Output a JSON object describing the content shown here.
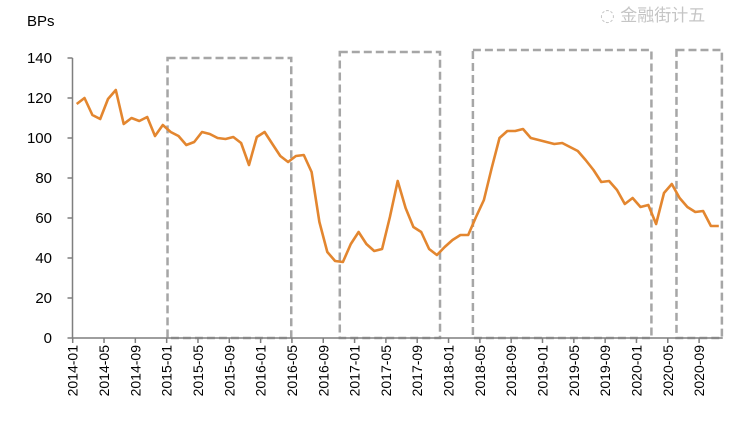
{
  "chart_data": {
    "type": "line",
    "ylabel": "BPs",
    "ylim": [
      0,
      140
    ],
    "yticks": [
      0,
      20,
      40,
      60,
      80,
      100,
      120,
      140
    ],
    "grid": false,
    "x_start": "2014-01",
    "xtick_labels": [
      "2014-01",
      "2014-05",
      "2014-09",
      "2015-01",
      "2015-05",
      "2015-09",
      "2016-01",
      "2016-05",
      "2016-09",
      "2017-01",
      "2017-05",
      "2017-09",
      "2018-01",
      "2018-05",
      "2018-09",
      "2019-01",
      "2019-05",
      "2019-09",
      "2020-01",
      "2020-05",
      "2020-09"
    ],
    "series": [
      {
        "color": "#E3862F",
        "values": [
          117,
          120,
          111.5,
          109.5,
          119.5,
          124,
          107,
          110,
          108.5,
          110.5,
          101,
          106.5,
          103,
          101,
          96.5,
          98,
          103,
          102,
          100,
          99.5,
          100.5,
          97.5,
          86.5,
          100.5,
          103,
          97,
          91,
          88,
          91,
          91.5,
          83,
          58,
          43,
          38.5,
          38,
          47,
          53,
          47,
          43.5,
          44.5,
          60.5,
          78.5,
          65,
          55.5,
          53,
          44.5,
          41.5,
          45.5,
          49,
          51.5,
          51.5,
          60.5,
          69,
          85,
          100,
          103.5,
          103.5,
          104.5,
          100,
          99,
          98,
          97,
          97.5,
          95.5,
          93.5,
          89,
          84,
          78,
          78.5,
          74,
          67,
          70,
          65.5,
          66.5,
          57,
          72.5,
          77,
          70,
          65.5,
          63,
          63.5,
          56,
          56
        ]
      }
    ],
    "highlight_periods": [
      {
        "start": "2015-01",
        "end": "2016-04",
        "top": 140
      },
      {
        "start": "2016-11",
        "end": "2017-11",
        "top": 143
      },
      {
        "start": "2018-04",
        "end": "2020-02",
        "top": 144
      },
      {
        "start": "2020-06",
        "end": "2020-11",
        "top": 144
      }
    ],
    "axis_color": "#7F7F7F",
    "box_color": "#A6A6A6"
  },
  "watermark": "金融街计五"
}
